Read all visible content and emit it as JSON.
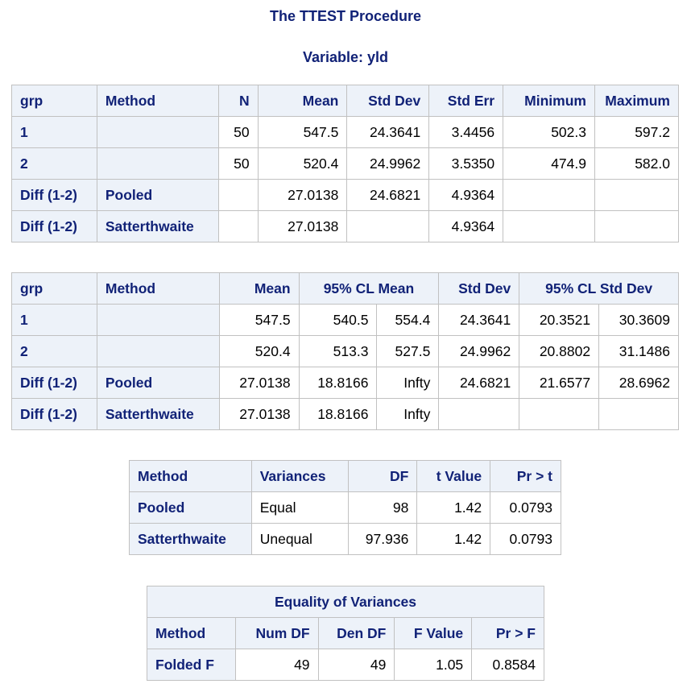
{
  "header": {
    "title": "The TTEST Procedure",
    "subtitle": "Variable: yld"
  },
  "table1": {
    "columns": [
      "grp",
      "Method",
      "N",
      "Mean",
      "Std Dev",
      "Std Err",
      "Minimum",
      "Maximum"
    ],
    "rows": [
      {
        "grp": "1",
        "method": "",
        "n": "50",
        "mean": "547.5",
        "std_dev": "24.3641",
        "std_err": "3.4456",
        "min": "502.3",
        "max": "597.2"
      },
      {
        "grp": "2",
        "method": "",
        "n": "50",
        "mean": "520.4",
        "std_dev": "24.9962",
        "std_err": "3.5350",
        "min": "474.9",
        "max": "582.0"
      },
      {
        "grp": "Diff (1-2)",
        "method": "Pooled",
        "n": "",
        "mean": "27.0138",
        "std_dev": "24.6821",
        "std_err": "4.9364",
        "min": "",
        "max": ""
      },
      {
        "grp": "Diff (1-2)",
        "method": "Satterthwaite",
        "n": "",
        "mean": "27.0138",
        "std_dev": "",
        "std_err": "4.9364",
        "min": "",
        "max": ""
      }
    ]
  },
  "table2": {
    "columns": [
      "grp",
      "Method",
      "Mean",
      "95% CL Mean",
      "Std Dev",
      "95% CL Std Dev"
    ],
    "rows": [
      {
        "grp": "1",
        "method": "",
        "mean": "547.5",
        "cl_mean_lo": "540.5",
        "cl_mean_hi": "554.4",
        "std_dev": "24.3641",
        "cl_sd_lo": "20.3521",
        "cl_sd_hi": "30.3609"
      },
      {
        "grp": "2",
        "method": "",
        "mean": "520.4",
        "cl_mean_lo": "513.3",
        "cl_mean_hi": "527.5",
        "std_dev": "24.9962",
        "cl_sd_lo": "20.8802",
        "cl_sd_hi": "31.1486"
      },
      {
        "grp": "Diff (1-2)",
        "method": "Pooled",
        "mean": "27.0138",
        "cl_mean_lo": "18.8166",
        "cl_mean_hi": "Infty",
        "std_dev": "24.6821",
        "cl_sd_lo": "21.6577",
        "cl_sd_hi": "28.6962"
      },
      {
        "grp": "Diff (1-2)",
        "method": "Satterthwaite",
        "mean": "27.0138",
        "cl_mean_lo": "18.8166",
        "cl_mean_hi": "Infty",
        "std_dev": "",
        "cl_sd_lo": "",
        "cl_sd_hi": ""
      }
    ]
  },
  "table3": {
    "columns": [
      "Method",
      "Variances",
      "DF",
      "t Value",
      "Pr > t"
    ],
    "rows": [
      {
        "method": "Pooled",
        "variances": "Equal",
        "df": "98",
        "t_value": "1.42",
        "p": "0.0793"
      },
      {
        "method": "Satterthwaite",
        "variances": "Unequal",
        "df": "97.936",
        "t_value": "1.42",
        "p": "0.0793"
      }
    ]
  },
  "table4": {
    "caption": "Equality of Variances",
    "columns": [
      "Method",
      "Num DF",
      "Den DF",
      "F Value",
      "Pr > F"
    ],
    "rows": [
      {
        "method": "Folded F",
        "num_df": "49",
        "den_df": "49",
        "f_value": "1.05",
        "p": "0.8584"
      }
    ]
  }
}
